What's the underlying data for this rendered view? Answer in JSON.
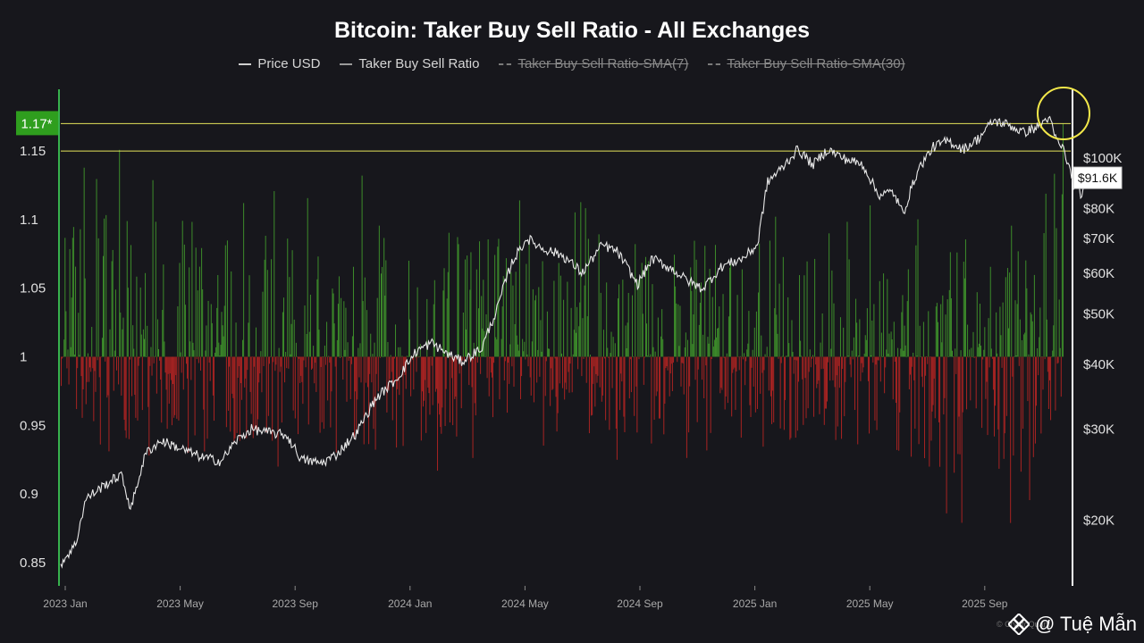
{
  "chart_data": {
    "type": "bar",
    "title": "Bitcoin: Taker Buy Sell Ratio - All Exchanges",
    "legend": [
      {
        "label": "Price USD",
        "enabled": true
      },
      {
        "label": "Taker Buy Sell Ratio",
        "enabled": true
      },
      {
        "label": "Taker Buy Sell Ratio-SMA(7)",
        "enabled": false
      },
      {
        "label": "Taker Buy Sell Ratio-SMA(30)",
        "enabled": false
      }
    ],
    "legend_position": "top-center",
    "x_ticks": [
      "2023 Jan",
      "2023 May",
      "2023 Sep",
      "2024 Jan",
      "2024 May",
      "2024 Sep",
      "2025 Jan",
      "2025 May",
      "2025 Sep"
    ],
    "y_left": {
      "ticks": [
        "1.15",
        "1.1",
        "1.05",
        "1",
        "0.95",
        "0.9",
        "0.85"
      ],
      "ylim": [
        0.833,
        1.195
      ],
      "baseline": 1
    },
    "y_right": {
      "ticks": [
        "$100K",
        "$80K",
        "$70K",
        "$60K",
        "$50K",
        "$40K",
        "$30K",
        "$20K"
      ],
      "scale": "log"
    },
    "reference_lines": [
      1.17,
      1.15
    ],
    "current_ratio_label": "1.17*",
    "current_price_label": "$91.6K",
    "ratio_keyframes": [
      {
        "t": 0.0,
        "up": 1.09,
        "down": 0.96
      },
      {
        "t": 0.08,
        "up": 1.12,
        "down": 0.93
      },
      {
        "t": 0.15,
        "up": 1.1,
        "down": 0.93
      },
      {
        "t": 0.25,
        "up": 1.09,
        "down": 0.94
      },
      {
        "t": 0.33,
        "up": 1.1,
        "down": 0.93
      },
      {
        "t": 0.45,
        "up": 1.09,
        "down": 0.95
      },
      {
        "t": 0.55,
        "up": 1.09,
        "down": 0.94
      },
      {
        "t": 0.66,
        "up": 1.09,
        "down": 0.93
      },
      {
        "t": 0.76,
        "up": 1.08,
        "down": 0.94
      },
      {
        "t": 0.88,
        "up": 1.08,
        "down": 0.91
      },
      {
        "t": 0.96,
        "up": 1.08,
        "down": 0.91
      },
      {
        "t": 1.0,
        "up": 1.17,
        "down": 0.95
      }
    ],
    "price_keyframes": [
      {
        "t": 0.0,
        "v": 16500
      },
      {
        "t": 0.015,
        "v": 18000
      },
      {
        "t": 0.025,
        "v": 22000
      },
      {
        "t": 0.045,
        "v": 23500
      },
      {
        "t": 0.06,
        "v": 24500
      },
      {
        "t": 0.07,
        "v": 21000
      },
      {
        "t": 0.085,
        "v": 27000
      },
      {
        "t": 0.1,
        "v": 28500
      },
      {
        "t": 0.12,
        "v": 27500
      },
      {
        "t": 0.14,
        "v": 26500
      },
      {
        "t": 0.16,
        "v": 26000
      },
      {
        "t": 0.175,
        "v": 28500
      },
      {
        "t": 0.19,
        "v": 30000
      },
      {
        "t": 0.21,
        "v": 29500
      },
      {
        "t": 0.225,
        "v": 29200
      },
      {
        "t": 0.24,
        "v": 26200
      },
      {
        "t": 0.26,
        "v": 25800
      },
      {
        "t": 0.275,
        "v": 26800
      },
      {
        "t": 0.295,
        "v": 29500
      },
      {
        "t": 0.315,
        "v": 34500
      },
      {
        "t": 0.335,
        "v": 37500
      },
      {
        "t": 0.355,
        "v": 42500
      },
      {
        "t": 0.37,
        "v": 44000
      },
      {
        "t": 0.385,
        "v": 42000
      },
      {
        "t": 0.4,
        "v": 40500
      },
      {
        "t": 0.42,
        "v": 43000
      },
      {
        "t": 0.435,
        "v": 51000
      },
      {
        "t": 0.45,
        "v": 63000
      },
      {
        "t": 0.465,
        "v": 70000
      },
      {
        "t": 0.48,
        "v": 67000
      },
      {
        "t": 0.5,
        "v": 65000
      },
      {
        "t": 0.52,
        "v": 60000
      },
      {
        "t": 0.54,
        "v": 68000
      },
      {
        "t": 0.555,
        "v": 66000
      },
      {
        "t": 0.575,
        "v": 57000
      },
      {
        "t": 0.59,
        "v": 64000
      },
      {
        "t": 0.61,
        "v": 61000
      },
      {
        "t": 0.625,
        "v": 58000
      },
      {
        "t": 0.64,
        "v": 56000
      },
      {
        "t": 0.66,
        "v": 62000
      },
      {
        "t": 0.68,
        "v": 64000
      },
      {
        "t": 0.695,
        "v": 68000
      },
      {
        "t": 0.705,
        "v": 90000
      },
      {
        "t": 0.72,
        "v": 96000
      },
      {
        "t": 0.735,
        "v": 104000
      },
      {
        "t": 0.75,
        "v": 97000
      },
      {
        "t": 0.765,
        "v": 104000
      },
      {
        "t": 0.78,
        "v": 100000
      },
      {
        "t": 0.8,
        "v": 97000
      },
      {
        "t": 0.815,
        "v": 85000
      },
      {
        "t": 0.83,
        "v": 86000
      },
      {
        "t": 0.84,
        "v": 78000
      },
      {
        "t": 0.855,
        "v": 95000
      },
      {
        "t": 0.87,
        "v": 105000
      },
      {
        "t": 0.885,
        "v": 108000
      },
      {
        "t": 0.9,
        "v": 104000
      },
      {
        "t": 0.915,
        "v": 109000
      },
      {
        "t": 0.93,
        "v": 118000
      },
      {
        "t": 0.945,
        "v": 116000
      },
      {
        "t": 0.96,
        "v": 112000
      },
      {
        "t": 0.975,
        "v": 115000
      },
      {
        "t": 0.985,
        "v": 120000
      },
      {
        "t": 0.993,
        "v": 108000
      },
      {
        "t": 1.0,
        "v": 104000
      },
      {
        "t": 1.01,
        "v": 89000
      },
      {
        "t": 1.018,
        "v": 85000
      },
      {
        "t": 1.025,
        "v": 91600
      }
    ]
  },
  "watermark": {
    "text": "@ Tuệ Mẫn",
    "credit": "© CryptoQuant"
  }
}
